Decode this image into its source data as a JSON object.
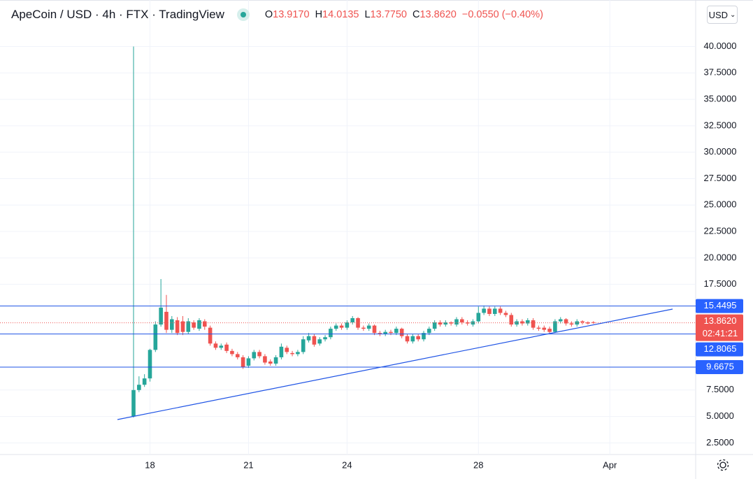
{
  "chart_data": {
    "type": "candlestick",
    "title": "ApeCoin / USD · 4h · FTX · TradingView",
    "ohlc_legend": [
      {
        "label": "O",
        "value": "13.9170"
      },
      {
        "label": "H",
        "value": "14.0135"
      },
      {
        "label": "L",
        "value": "13.7750"
      },
      {
        "label": "C",
        "value": "13.8620"
      }
    ],
    "change": "−0.0550 (−0.40%)",
    "currency": "USD",
    "up_color": "#26a69a",
    "down_color": "#ef5350",
    "line_color": "#1e53e5",
    "grid": true,
    "categories": [
      null,
      null,
      null,
      "18",
      null,
      null,
      null,
      null,
      null,
      null,
      null,
      null,
      null,
      null,
      null,
      null,
      null,
      null,
      null,
      null,
      null,
      "21",
      null,
      null,
      null,
      null,
      null,
      null,
      null,
      null,
      null,
      null,
      null,
      null,
      null,
      null,
      null,
      null,
      null,
      "24",
      null,
      null,
      null,
      null,
      null,
      null,
      null,
      null,
      null,
      null,
      null,
      null,
      null,
      null,
      null,
      null,
      null,
      null,
      null,
      null,
      null,
      null,
      null,
      "28",
      null,
      null,
      null,
      null,
      null,
      null,
      null,
      null,
      null,
      null,
      null,
      null,
      null,
      null,
      null,
      null,
      null,
      null,
      null,
      null,
      null,
      null,
      null,
      "Apr"
    ],
    "open": [
      5.0,
      7.5,
      8.0,
      8.6,
      11.3,
      13.7,
      14.9,
      13.2,
      14.1,
      14.0,
      13.0,
      13.9,
      13.3,
      14.0,
      13.4,
      11.9,
      11.5,
      11.8,
      11.2,
      10.9,
      10.6,
      9.8,
      10.5,
      11.1,
      10.7,
      10.2,
      10.0,
      10.6,
      11.5,
      11.0,
      10.9,
      11.1,
      12.2,
      12.6,
      11.9,
      12.3,
      12.5,
      13.3,
      13.6,
      13.4,
      13.9,
      14.3,
      13.4,
      13.3,
      13.6,
      12.9,
      12.8,
      13.0,
      12.9,
      13.3,
      12.6,
      12.1,
      12.6,
      12.3,
      12.9,
      13.3,
      13.9,
      13.7,
      13.9,
      13.7,
      14.2,
      13.9,
      13.7,
      14.0,
      14.8,
      15.2,
      14.7,
      15.2,
      14.8,
      14.6,
      13.7,
      14.0,
      13.8,
      14.1,
      13.4,
      13.4,
      13.3,
      13.0,
      14.0,
      14.2,
      13.8,
      13.7,
      14.0,
      13.9,
      13.917,
      null,
      null,
      null
    ],
    "high": [
      40.0,
      8.8,
      9.0,
      11.4,
      14.0,
      18.0,
      16.5,
      14.5,
      14.4,
      14.5,
      14.3,
      14.1,
      14.3,
      14.2,
      13.6,
      12.1,
      11.9,
      12.0,
      11.4,
      11.1,
      10.8,
      10.7,
      11.3,
      11.3,
      10.9,
      10.4,
      10.8,
      11.9,
      11.7,
      11.2,
      11.3,
      12.6,
      12.9,
      12.8,
      12.5,
      12.7,
      13.5,
      13.8,
      13.8,
      14.1,
      14.5,
      14.4,
      13.6,
      13.8,
      13.7,
      13.1,
      13.2,
      13.2,
      13.5,
      13.4,
      12.8,
      12.8,
      12.8,
      13.1,
      13.5,
      14.1,
      14.1,
      14.1,
      14.0,
      14.4,
      14.4,
      14.1,
      14.2,
      15.4,
      15.5,
      15.4,
      15.4,
      15.4,
      15.0,
      14.8,
      14.2,
      14.2,
      14.3,
      14.3,
      13.6,
      13.6,
      13.5,
      14.2,
      14.4,
      14.3,
      14.0,
      14.2,
      14.1,
      14.0,
      14.0135,
      null,
      null,
      null
    ],
    "low": [
      4.9,
      7.3,
      7.8,
      8.3,
      11.1,
      13.5,
      12.9,
      12.9,
      12.7,
      12.7,
      12.8,
      13.2,
      13.1,
      13.2,
      11.7,
      11.3,
      11.3,
      11.0,
      10.7,
      10.4,
      9.5,
      9.6,
      10.3,
      10.5,
      9.9,
      9.8,
      9.8,
      10.4,
      10.9,
      10.7,
      10.7,
      10.9,
      12.0,
      11.6,
      11.7,
      12.1,
      12.3,
      13.1,
      13.2,
      13.2,
      13.7,
      13.2,
      13.1,
      13.1,
      12.7,
      12.6,
      12.6,
      12.7,
      12.7,
      12.4,
      11.9,
      11.9,
      12.1,
      12.1,
      12.7,
      13.1,
      13.5,
      13.5,
      13.6,
      13.5,
      13.7,
      13.6,
      13.5,
      13.8,
      14.6,
      14.5,
      14.5,
      14.6,
      14.4,
      13.5,
      13.5,
      13.6,
      13.6,
      13.2,
      13.1,
      13.0,
      12.8,
      12.9,
      13.8,
      13.6,
      13.5,
      13.5,
      13.7,
      13.7,
      13.775,
      null,
      null,
      null
    ],
    "close": [
      7.5,
      8.0,
      8.6,
      11.3,
      13.7,
      15.3,
      13.2,
      14.2,
      12.9,
      13.0,
      14.0,
      13.4,
      14.1,
      13.5,
      11.9,
      11.5,
      11.7,
      11.2,
      10.9,
      10.6,
      9.7,
      10.5,
      11.1,
      10.7,
      10.1,
      10.0,
      10.6,
      11.6,
      11.1,
      10.9,
      11.1,
      12.3,
      12.6,
      11.8,
      12.3,
      12.5,
      13.3,
      13.6,
      13.4,
      13.9,
      14.3,
      13.4,
      13.3,
      13.6,
      12.9,
      12.8,
      13.0,
      12.9,
      13.3,
      12.6,
      12.1,
      12.6,
      12.3,
      12.9,
      13.3,
      13.9,
      13.7,
      13.9,
      13.8,
      14.2,
      13.9,
      13.8,
      14.0,
      14.8,
      15.2,
      14.7,
      15.2,
      14.8,
      14.6,
      13.7,
      14.0,
      13.8,
      14.1,
      13.4,
      13.3,
      13.2,
      13.0,
      14.0,
      14.2,
      13.8,
      13.7,
      14.0,
      13.9,
      13.8,
      13.862,
      null,
      null,
      null
    ],
    "ylim": [
      1.4,
      44.4
    ],
    "yticks": [
      {
        "value": 2.5,
        "label": "2.5000"
      },
      {
        "value": 5,
        "label": "5.0000"
      },
      {
        "value": 7.5,
        "label": "7.5000"
      },
      {
        "value": 17.5,
        "label": "17.5000"
      },
      {
        "value": 20,
        "label": "20.0000"
      },
      {
        "value": 22.5,
        "label": "22.5000"
      },
      {
        "value": 25,
        "label": "25.0000"
      },
      {
        "value": 27.5,
        "label": "27.5000"
      },
      {
        "value": 30,
        "label": "30.0000"
      },
      {
        "value": 32.5,
        "label": "32.5000"
      },
      {
        "value": 35,
        "label": "35.0000"
      },
      {
        "value": 37.5,
        "label": "37.5000"
      },
      {
        "value": 40,
        "label": "40.0000"
      }
    ],
    "price_lines": [
      15.4495,
      12.8065,
      9.6675
    ],
    "last_price": {
      "value": 13.862,
      "label": "13.8620"
    },
    "countdown": "02:41:21"
  }
}
